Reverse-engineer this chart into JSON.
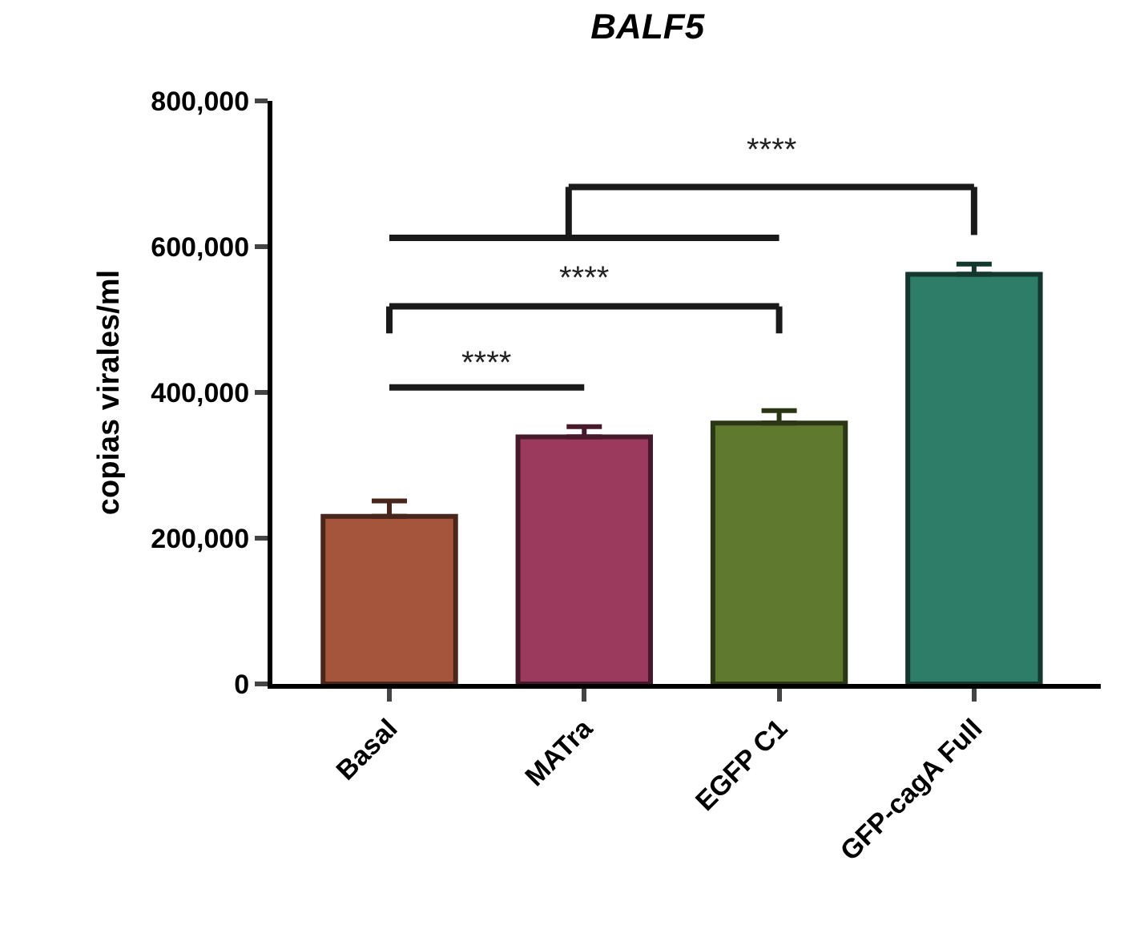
{
  "chart_data": {
    "type": "bar",
    "title": "BALF5",
    "ylabel": "copias virales/ml",
    "categories": [
      "Basal",
      "MATra",
      "EGFP C1",
      "GFP-cagA Full"
    ],
    "values": [
      230000,
      339000,
      358000,
      562000
    ],
    "errors": [
      [
        230000,
        251000
      ],
      [
        339000,
        353000
      ],
      [
        358000,
        375000
      ],
      [
        562000,
        576000
      ]
    ],
    "colors": [
      "#a4553c",
      "#9c3a5e",
      "#5f7a2e",
      "#2e7d68"
    ],
    "ylim": [
      0,
      800000
    ],
    "yticks": [
      {
        "value": 0,
        "label": "0"
      },
      {
        "value": 200000,
        "label": "200,000"
      },
      {
        "value": 400000,
        "label": "400,000"
      },
      {
        "value": 600000,
        "label": "600,000"
      },
      {
        "value": 800000,
        "label": "800,000"
      }
    ],
    "annotations": [
      "****",
      "****",
      "****"
    ]
  }
}
